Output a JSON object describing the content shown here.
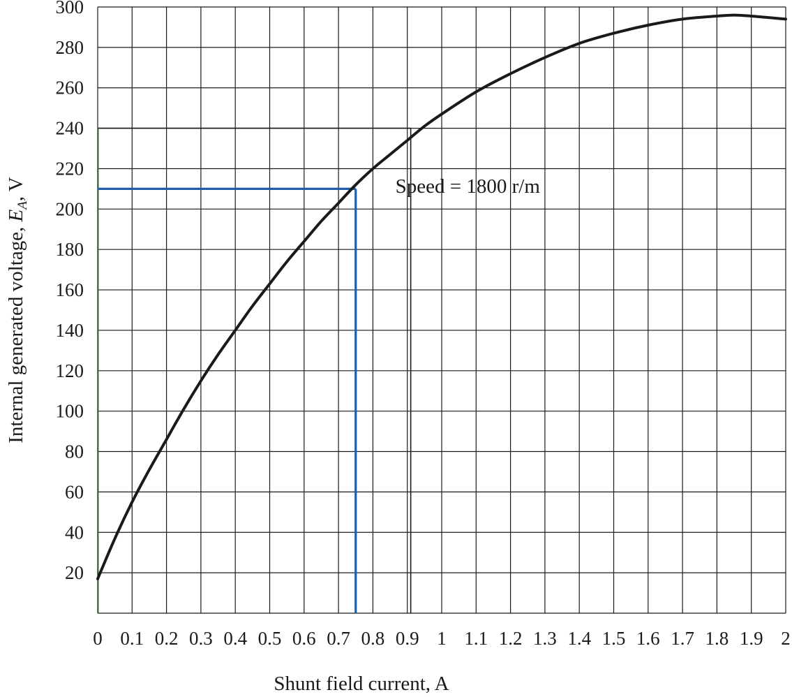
{
  "chart_data": {
    "type": "line",
    "xlabel": "Shunt field current, A",
    "ylabel": {
      "prefix": "Internal generated voltage, ",
      "symbol": "E",
      "subscript": "A",
      "suffix": ", V"
    },
    "xlim": [
      0,
      2
    ],
    "ylim": [
      0,
      300
    ],
    "x_ticks": [
      "0",
      "0.1",
      "0.2",
      "0.3",
      "0.4",
      "0.5",
      "0.6",
      "0.7",
      "0.8",
      "0.9",
      "1",
      "1.1",
      "1.2",
      "1.3",
      "1.4",
      "1.5",
      "1.6",
      "1.7",
      "1.8",
      "1.9",
      "2"
    ],
    "y_ticks": [
      "20",
      "40",
      "60",
      "80",
      "100",
      "120",
      "140",
      "160",
      "180",
      "200",
      "220",
      "240",
      "260",
      "280",
      "300"
    ],
    "grid": true,
    "series": [
      {
        "x": [
          0,
          0.05,
          0.1,
          0.15,
          0.2,
          0.25,
          0.3,
          0.35,
          0.4,
          0.45,
          0.5,
          0.55,
          0.6,
          0.65,
          0.7,
          0.75,
          0.8,
          0.85,
          0.9,
          0.95,
          1.0,
          1.1,
          1.2,
          1.3,
          1.4,
          1.5,
          1.6,
          1.7,
          1.8,
          1.85,
          1.9,
          2.0
        ],
        "y": [
          17,
          37,
          55,
          71,
          86,
          101,
          115,
          128,
          140,
          152,
          163,
          174,
          184,
          194,
          203,
          212,
          220,
          227,
          234,
          241,
          247,
          258,
          267,
          275,
          282,
          287,
          291,
          294,
          295.5,
          296,
          295.5,
          294
        ],
        "color": "#1a1a1a"
      }
    ],
    "reference_lines": [
      {
        "x": 0.91,
        "y": 240,
        "color": "#1a1a1a",
        "accent": "#2e9e2e"
      },
      {
        "x": 0.75,
        "y": 210,
        "color": "#1f5fa6"
      }
    ],
    "annotations": [
      {
        "text": "Speed = 1800 r/m",
        "x": 0.91,
        "y": 208
      }
    ]
  }
}
